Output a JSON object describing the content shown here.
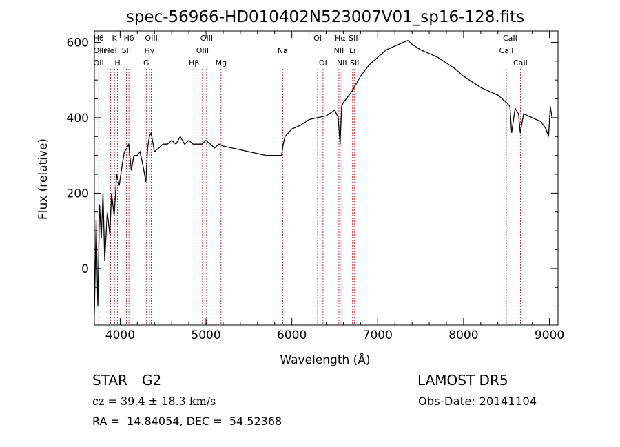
{
  "chart_data": {
    "type": "line",
    "title": "spec-56966-HD010402N523007V01_sp16-128.fits",
    "xlabel": "Wavelength (Å)",
    "ylabel": "Flux (relative)",
    "xlim": [
      3700,
      9100
    ],
    "ylim": [
      -150,
      630
    ],
    "x_ticks": [
      4000,
      5000,
      6000,
      7000,
      8000,
      9000
    ],
    "y_ticks": [
      0,
      200,
      400,
      600
    ],
    "grid": false,
    "series": [
      {
        "x": [
          3700,
          3720,
          3740,
          3760,
          3780,
          3800,
          3820,
          3850,
          3880,
          3900,
          3930,
          3960,
          3990,
          4020,
          4050,
          4080,
          4100,
          4130,
          4160,
          4200,
          4230,
          4260,
          4300,
          4320,
          4340,
          4360,
          4400,
          4450,
          4500,
          4550,
          4600,
          4650,
          4700,
          4750,
          4800,
          4850,
          4900,
          4950,
          5000,
          5050,
          5100,
          5150,
          5200,
          5300,
          5400,
          5500,
          5600,
          5700,
          5800,
          5880,
          5900,
          5920,
          6000,
          6100,
          6200,
          6300,
          6400,
          6500,
          6540,
          6562,
          6580,
          6600,
          6650,
          6700,
          6750,
          6800,
          6900,
          7000,
          7100,
          7200,
          7300,
          7350,
          7400,
          7500,
          7600,
          7700,
          7800,
          7900,
          8000,
          8100,
          8200,
          8300,
          8400,
          8500,
          8540,
          8560,
          8600,
          8640,
          8660,
          8700,
          8800,
          8900,
          8960,
          8990,
          9010,
          9030
        ],
        "y": [
          -120,
          130,
          -100,
          170,
          80,
          200,
          20,
          150,
          90,
          200,
          140,
          250,
          220,
          270,
          310,
          320,
          330,
          260,
          300,
          300,
          310,
          280,
          230,
          320,
          350,
          360,
          310,
          320,
          330,
          330,
          340,
          330,
          350,
          330,
          340,
          330,
          330,
          330,
          340,
          330,
          320,
          330,
          325,
          320,
          315,
          310,
          305,
          300,
          300,
          300,
          330,
          350,
          370,
          380,
          395,
          400,
          405,
          420,
          400,
          330,
          430,
          440,
          455,
          470,
          490,
          510,
          540,
          560,
          580,
          590,
          600,
          605,
          595,
          580,
          570,
          560,
          545,
          530,
          510,
          495,
          480,
          470,
          460,
          440,
          430,
          360,
          425,
          410,
          360,
          410,
          400,
          390,
          370,
          350,
          430,
          400
        ]
      }
    ],
    "line_markers": [
      {
        "w": 3750,
        "labels": [
          "Hθ",
          "OII",
          "OII"
        ]
      },
      {
        "w": 3800,
        "labels": [
          "",
          "Hη",
          ""
        ]
      },
      {
        "w": 3889,
        "labels": [
          "",
          "HeI",
          ""
        ]
      },
      {
        "w": 3934,
        "labels": [
          "K",
          "",
          ""
        ]
      },
      {
        "w": 3969,
        "labels": [
          "",
          "",
          "H"
        ]
      },
      {
        "w": 4072,
        "labels": [
          "",
          "SII",
          ""
        ]
      },
      {
        "w": 4102,
        "labels": [
          "Hδ",
          "",
          ""
        ]
      },
      {
        "w": 4304,
        "labels": [
          "",
          "",
          "G"
        ]
      },
      {
        "w": 4341,
        "labels": [
          "",
          "Hγ",
          ""
        ]
      },
      {
        "w": 4363,
        "labels": [
          "OIII",
          "",
          ""
        ]
      },
      {
        "w": 4861,
        "labels": [
          "",
          "",
          "Hβ"
        ]
      },
      {
        "w": 4959,
        "labels": [
          "",
          "OIII",
          ""
        ]
      },
      {
        "w": 5007,
        "labels": [
          "OIII",
          "",
          ""
        ]
      },
      {
        "w": 5175,
        "labels": [
          "",
          "",
          "Mg"
        ]
      },
      {
        "w": 5893,
        "labels": [
          "",
          "Na",
          ""
        ]
      },
      {
        "w": 6300,
        "labels": [
          "OI",
          "",
          ""
        ]
      },
      {
        "w": 6363,
        "labels": [
          "",
          "",
          "OI"
        ]
      },
      {
        "w": 6548,
        "labels": [
          "",
          "NII",
          ""
        ]
      },
      {
        "w": 6563,
        "labels": [
          "Hα",
          "",
          ""
        ]
      },
      {
        "w": 6583,
        "labels": [
          "",
          "",
          "NII"
        ]
      },
      {
        "w": 6707,
        "labels": [
          "",
          "Li",
          ""
        ]
      },
      {
        "w": 6716,
        "labels": [
          "SII",
          "",
          ""
        ]
      },
      {
        "w": 6731,
        "labels": [
          "",
          "",
          "SII"
        ]
      },
      {
        "w": 8498,
        "labels": [
          "",
          "CaII",
          ""
        ]
      },
      {
        "w": 8542,
        "labels": [
          "CaII",
          "",
          ""
        ]
      },
      {
        "w": 8662,
        "labels": [
          "",
          "",
          "CaII"
        ]
      }
    ],
    "colors": {
      "spectrum": "#000000",
      "line_marker": "#c00000",
      "axis": "#000000"
    }
  },
  "info": {
    "object_class": "STAR",
    "subclass": "G2",
    "survey": "LAMOST DR5",
    "cz": "cz = 39.4 ± 18.3 km/s",
    "obs_date": "Obs-Date: 20141104",
    "coords": "RA =  14.84054, DEC =  54.52368"
  }
}
